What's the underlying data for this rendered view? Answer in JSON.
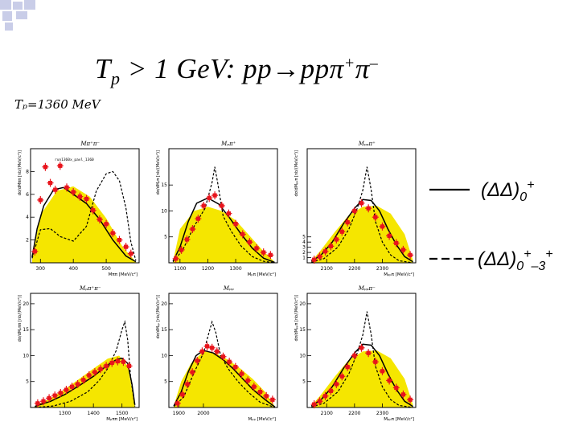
{
  "header": {
    "title_prefix": "T",
    "title_sub": "p",
    "title_main": " > 1 GeV:   pp→ppπ",
    "title_sup1": "+",
    "title_pi": "π",
    "title_sup2": "–",
    "energy_label": "Tₚ=1360 MeV"
  },
  "legend": {
    "solid_label": "(ΔΔ)",
    "solid_sub": "0",
    "solid_sup": "+",
    "dashed_label": "(ΔΔ)",
    "dashed_sub": "0",
    "dashed_sup1": "+",
    "dashed_sub2": "–3",
    "dashed_sup2": "+"
  },
  "colors": {
    "phase_space_fill": "#f5e600",
    "data_points": "#e8141c",
    "curves": "#000000",
    "corner_deco": "#c9cde8"
  },
  "chart_data": [
    {
      "type": "line",
      "title": "Mπ⁺π⁻",
      "xlabel": "Mππ [MeV/c²]",
      "ylabel": "dσ/dMππ [nb/(MeV/c²)]",
      "annotation": "run1360x_pavl_1360",
      "xlim": [
        270,
        600
      ],
      "ylim": [
        0,
        10
      ],
      "xticks": [
        300,
        400,
        500
      ],
      "yticks": [
        2,
        4,
        6,
        8
      ],
      "phase_space": {
        "x": [
          275,
          300,
          350,
          400,
          450,
          500,
          550,
          590
        ],
        "y": [
          0.3,
          4.2,
          6.3,
          6.7,
          5.8,
          3.9,
          1.4,
          0.1
        ]
      },
      "solid": {
        "x": [
          275,
          290,
          310,
          340,
          370,
          400,
          440,
          480,
          520,
          560,
          590
        ],
        "y": [
          0.5,
          3.0,
          5.0,
          6.4,
          6.6,
          6.0,
          5.2,
          3.8,
          2.0,
          0.6,
          0.1
        ]
      },
      "dashed": {
        "x": [
          275,
          300,
          330,
          360,
          400,
          440,
          470,
          500,
          520,
          540,
          560,
          575,
          590
        ],
        "y": [
          0.4,
          2.9,
          3.0,
          2.3,
          1.9,
          3.2,
          6.3,
          7.8,
          8.0,
          7.2,
          4.8,
          1.8,
          0.2
        ]
      },
      "points": {
        "x": [
          283,
          300,
          315,
          330,
          345,
          360,
          380,
          400,
          420,
          440,
          460,
          480,
          500,
          520,
          540,
          560,
          575
        ],
        "y": [
          1.0,
          5.5,
          8.4,
          7.0,
          6.4,
          8.5,
          6.6,
          6.2,
          5.8,
          5.6,
          4.6,
          3.8,
          3.4,
          2.6,
          2.0,
          1.4,
          0.8
        ]
      }
    },
    {
      "type": "line",
      "title": "Mₚπ⁺",
      "xlabel": "Mₚπ [MeV/c²]",
      "ylabel": "dσ/dMₚπ [nb/(MeV/c²)]",
      "xlim": [
        1060,
        1450
      ],
      "ylim": [
        0,
        22
      ],
      "xticks": [
        1100,
        1200,
        1300
      ],
      "yticks": [
        5,
        10,
        15
      ],
      "phase_space": {
        "x": [
          1075,
          1100,
          1150,
          1200,
          1250,
          1300,
          1350,
          1400,
          1440
        ],
        "y": [
          0.3,
          6.5,
          10.0,
          10.8,
          10.0,
          8.2,
          5.2,
          2.2,
          0.2
        ]
      },
      "solid": {
        "x": [
          1075,
          1100,
          1130,
          1160,
          1200,
          1240,
          1280,
          1320,
          1360,
          1400,
          1440
        ],
        "y": [
          0.3,
          3.0,
          8.0,
          11.5,
          12.5,
          11.3,
          8.5,
          5.5,
          2.8,
          0.9,
          0.1
        ]
      },
      "dashed": {
        "x": [
          1075,
          1110,
          1150,
          1190,
          1215,
          1225,
          1235,
          1255,
          1285,
          1320,
          1360,
          1400,
          1440
        ],
        "y": [
          0.2,
          2.5,
          7.0,
          10.5,
          15.5,
          18.5,
          15.5,
          9.0,
          6.0,
          3.2,
          1.2,
          0.3,
          0.0
        ]
      },
      "points": {
        "x": [
          1085,
          1105,
          1125,
          1145,
          1165,
          1185,
          1205,
          1225,
          1250,
          1275,
          1300,
          1325,
          1350,
          1375,
          1400,
          1425
        ],
        "y": [
          0.8,
          2.5,
          4.5,
          6.5,
          8.5,
          11.0,
          12.5,
          13.0,
          11.0,
          9.5,
          7.5,
          5.5,
          4.0,
          2.8,
          2.0,
          1.5
        ]
      }
    },
    {
      "type": "line",
      "title": "Mₚₚπ⁺",
      "xlabel": "Mₚₚπ [MeV/c²]",
      "ylabel": "dσ/dMₚₚπ [nb/(MeV/c²)]",
      "xlim": [
        2030,
        2420
      ],
      "ylim": [
        0,
        22
      ],
      "xticks": [
        2100,
        2200,
        2300
      ],
      "yticks": [
        1,
        2,
        3,
        4,
        5
      ],
      "phase_space": {
        "x": [
          2045,
          2080,
          2130,
          2180,
          2230,
          2280,
          2330,
          2380,
          2410
        ],
        "y": [
          0.3,
          2.5,
          6.0,
          9.2,
          10.8,
          11.0,
          9.5,
          5.5,
          0.5
        ]
      },
      "solid": {
        "x": [
          2045,
          2080,
          2120,
          2160,
          2200,
          2230,
          2260,
          2290,
          2320,
          2350,
          2380,
          2410
        ],
        "y": [
          0.3,
          1.5,
          4.0,
          7.5,
          10.5,
          12.2,
          12.0,
          10.0,
          6.5,
          3.5,
          1.2,
          0.2
        ]
      },
      "dashed": {
        "x": [
          2045,
          2090,
          2140,
          2180,
          2210,
          2230,
          2245,
          2260,
          2275,
          2300,
          2330,
          2360,
          2410
        ],
        "y": [
          0.1,
          0.8,
          3.0,
          6.5,
          10.5,
          14.0,
          18.5,
          14.0,
          8.0,
          4.0,
          1.5,
          0.4,
          0.0
        ]
      },
      "points": {
        "x": [
          2055,
          2075,
          2095,
          2115,
          2135,
          2155,
          2175,
          2200,
          2225,
          2250,
          2275,
          2300,
          2325,
          2350,
          2375,
          2400
        ],
        "y": [
          0.6,
          1.2,
          2.2,
          3.2,
          4.5,
          6.0,
          7.8,
          10.0,
          11.5,
          10.5,
          8.8,
          7.0,
          5.2,
          3.8,
          2.5,
          1.5
        ]
      }
    },
    {
      "type": "line",
      "title": "Mₚπ⁺π⁻",
      "xlabel": "Mₚππ [MeV/c²]",
      "ylabel": "dσ/dMₚππ [nb/(MeV/c²)]",
      "xlim": [
        1180,
        1560
      ],
      "ylim": [
        0,
        22
      ],
      "xticks": [
        1300,
        1400,
        1500
      ],
      "yticks": [
        5,
        10,
        15,
        20
      ],
      "phase_space": {
        "x": [
          1195,
          1250,
          1300,
          1350,
          1400,
          1450,
          1490,
          1520,
          1545
        ],
        "y": [
          0.3,
          1.8,
          3.5,
          5.5,
          7.5,
          9.4,
          10.0,
          8.0,
          0.5
        ]
      },
      "solid": {
        "x": [
          1195,
          1250,
          1300,
          1350,
          1400,
          1450,
          1480,
          1500,
          1520,
          1535,
          1545
        ],
        "y": [
          0.2,
          1.2,
          2.5,
          4.2,
          6.0,
          8.2,
          9.2,
          9.5,
          8.5,
          4.5,
          0.5
        ]
      },
      "dashed": {
        "x": [
          1195,
          1260,
          1320,
          1380,
          1420,
          1450,
          1480,
          1500,
          1510,
          1520,
          1530,
          1545
        ],
        "y": [
          0.0,
          0.3,
          1.2,
          3.0,
          5.2,
          7.5,
          11.0,
          15.0,
          16.5,
          13.0,
          6.0,
          0.2
        ]
      },
      "points": {
        "x": [
          1205,
          1225,
          1245,
          1265,
          1285,
          1305,
          1325,
          1345,
          1365,
          1385,
          1405,
          1425,
          1445,
          1465,
          1485,
          1505,
          1525
        ],
        "y": [
          0.8,
          1.2,
          1.8,
          2.3,
          2.8,
          3.4,
          4.0,
          4.5,
          5.3,
          6.2,
          6.8,
          7.4,
          8.0,
          8.6,
          8.9,
          8.8,
          8.0
        ]
      }
    },
    {
      "type": "line",
      "title": "Mₚₚ",
      "xlabel": "Mₚₚ [MeV/c²]",
      "ylabel": "dσ/dMₚₚ [nb/(MeV/c²)]",
      "xlim": [
        1860,
        2300
      ],
      "ylim": [
        0,
        22
      ],
      "xticks": [
        1900,
        2000
      ],
      "yticks": [
        5,
        10,
        15,
        20
      ],
      "phase_space": {
        "x": [
          1880,
          1910,
          1950,
          2000,
          2050,
          2100,
          2150,
          2200,
          2250,
          2290
        ],
        "y": [
          0.3,
          5.0,
          8.5,
          10.8,
          10.5,
          9.2,
          7.5,
          5.5,
          3.0,
          0.2
        ]
      },
      "solid": {
        "x": [
          1880,
          1910,
          1940,
          1970,
          2000,
          2040,
          2080,
          2120,
          2160,
          2200,
          2250,
          2290
        ],
        "y": [
          0.3,
          3.0,
          7.0,
          10.0,
          11.0,
          10.5,
          9.2,
          7.5,
          5.5,
          3.5,
          1.5,
          0.1
        ]
      },
      "dashed": {
        "x": [
          1880,
          1920,
          1960,
          2000,
          2020,
          2035,
          2050,
          2070,
          2100,
          2140,
          2180,
          2230,
          2290
        ],
        "y": [
          0.2,
          2.0,
          6.5,
          10.5,
          14.0,
          16.5,
          14.5,
          10.0,
          7.5,
          5.0,
          3.0,
          1.0,
          0.0
        ]
      },
      "points": {
        "x": [
          1895,
          1915,
          1935,
          1955,
          1975,
          1995,
          2015,
          2035,
          2055,
          2080,
          2105,
          2130,
          2155,
          2180,
          2205,
          2230,
          2255,
          2280
        ],
        "y": [
          0.8,
          2.5,
          4.5,
          6.8,
          9.0,
          10.8,
          11.8,
          11.5,
          10.8,
          9.8,
          8.8,
          7.8,
          6.5,
          5.2,
          4.0,
          3.0,
          2.2,
          1.5
        ]
      }
    },
    {
      "type": "line",
      "title": "Mₚₚπ⁻",
      "xlabel": "Mₚₚπ [MeV/c²]",
      "ylabel": "dσ/dMₚₚπ [nb/(MeV/c²)]",
      "xlim": [
        2030,
        2420
      ],
      "ylim": [
        0,
        22
      ],
      "xticks": [
        2100,
        2200,
        2300
      ],
      "yticks": [
        5,
        10,
        15,
        20
      ],
      "phase_space": {
        "x": [
          2045,
          2080,
          2130,
          2180,
          2230,
          2280,
          2330,
          2380,
          2410
        ],
        "y": [
          0.3,
          2.5,
          6.0,
          9.2,
          10.8,
          11.0,
          9.5,
          5.5,
          0.5
        ]
      },
      "solid": {
        "x": [
          2045,
          2080,
          2120,
          2160,
          2200,
          2230,
          2260,
          2290,
          2320,
          2350,
          2380,
          2410
        ],
        "y": [
          0.3,
          1.5,
          4.0,
          7.5,
          10.5,
          12.2,
          12.0,
          10.0,
          6.5,
          3.5,
          1.2,
          0.2
        ]
      },
      "dashed": {
        "x": [
          2045,
          2090,
          2140,
          2180,
          2210,
          2230,
          2245,
          2260,
          2275,
          2300,
          2330,
          2360,
          2410
        ],
        "y": [
          0.1,
          0.8,
          3.0,
          6.5,
          10.5,
          14.0,
          18.5,
          14.0,
          8.0,
          4.0,
          1.5,
          0.4,
          0.0
        ]
      },
      "points": {
        "x": [
          2055,
          2075,
          2095,
          2115,
          2135,
          2155,
          2175,
          2200,
          2225,
          2250,
          2275,
          2300,
          2325,
          2350,
          2375,
          2400
        ],
        "y": [
          0.6,
          1.2,
          2.2,
          3.2,
          4.5,
          6.0,
          7.8,
          10.0,
          11.5,
          10.5,
          8.8,
          7.0,
          5.2,
          3.8,
          2.5,
          1.5
        ]
      }
    }
  ]
}
